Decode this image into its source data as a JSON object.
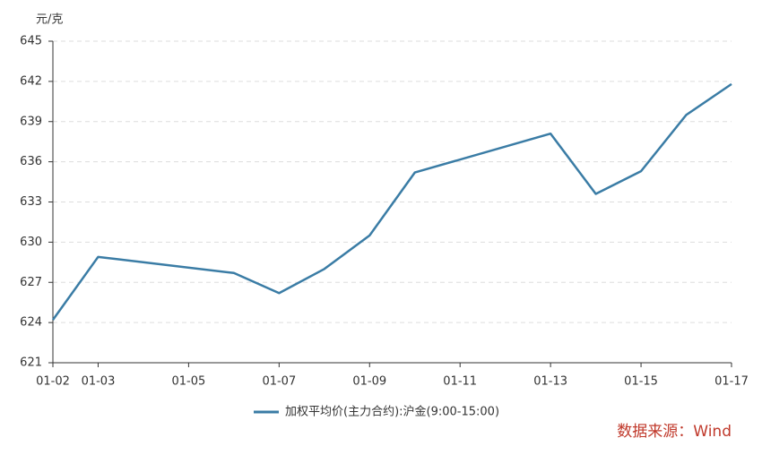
{
  "chart_data": {
    "type": "line",
    "y_axis_label": "元/克",
    "x": [
      "01-02",
      "01-03",
      "01-06",
      "01-07",
      "01-08",
      "01-09",
      "01-10",
      "01-13",
      "01-14",
      "01-15",
      "01-16",
      "01-17"
    ],
    "series": [
      {
        "name": "加权平均价(主力合约):沪金(9:00-15:00)",
        "color": "#3a7ca5",
        "values": [
          624.2,
          628.9,
          627.7,
          626.2,
          628.0,
          630.5,
          635.2,
          638.1,
          633.6,
          635.3,
          639.5,
          641.8
        ]
      }
    ],
    "xlim": [
      "01-02",
      "01-17"
    ],
    "xticks": [
      "01-02",
      "01-03",
      "01-05",
      "01-07",
      "01-09",
      "01-11",
      "01-13",
      "01-15",
      "01-17"
    ],
    "ylim": [
      621,
      645
    ],
    "yticks": [
      621,
      624,
      627,
      630,
      633,
      636,
      639,
      642,
      645
    ],
    "grid": true,
    "legend": "bottom",
    "source": "数据来源：Wind"
  }
}
